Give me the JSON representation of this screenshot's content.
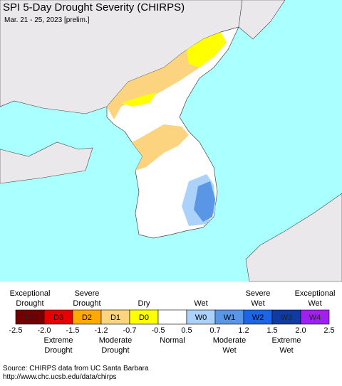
{
  "title": "SPI 5-Day Drought Severity (CHIRPS)",
  "subtitle": "Mar. 21 - 25, 2023 [prelim.]",
  "legend": {
    "classes": [
      {
        "code": "D4",
        "color": "#730000"
      },
      {
        "code": "D3",
        "color": "#e60000"
      },
      {
        "code": "D2",
        "color": "#ffaa00"
      },
      {
        "code": "D1",
        "color": "#fcd37f"
      },
      {
        "code": "D0",
        "color": "#ffff00"
      },
      {
        "code": "",
        "color": "#ffffff"
      },
      {
        "code": "W0",
        "color": "#aad2fa"
      },
      {
        "code": "W1",
        "color": "#5a96e6"
      },
      {
        "code": "W2",
        "color": "#1e64e6"
      },
      {
        "code": "W3",
        "color": "#0f3ca0"
      },
      {
        "code": "W4",
        "color": "#a020f0"
      }
    ],
    "ticks": [
      "-2.5",
      "-2.0",
      "-1.5",
      "-1.2",
      "-0.7",
      "-0.5",
      "0.5",
      "0.7",
      "1.2",
      "1.5",
      "2.0",
      "2.5"
    ],
    "upper_labels": [
      {
        "text": "Exceptional\nDrought",
        "class": 0
      },
      {
        "text": "Severe\nDrought",
        "class": 2
      },
      {
        "text": "Dry",
        "class": 4
      },
      {
        "text": "Wet",
        "class": 6
      },
      {
        "text": "Severe\nWet",
        "class": 8
      },
      {
        "text": "Exceptional\nWet",
        "class": 10
      }
    ],
    "lower_labels": [
      {
        "text": "Extreme\nDrought",
        "class": 1
      },
      {
        "text": "Moderate\nDrought",
        "class": 3
      },
      {
        "text": "Normal",
        "class": 5
      },
      {
        "text": "Moderate\nWet",
        "class": 7
      },
      {
        "text": "Extreme\nWet",
        "class": 9
      }
    ]
  },
  "source": [
    "Source: CHIRPS data from UC Santa Barbara",
    "http://www.chc.ucsb.edu/data/chirps"
  ]
}
